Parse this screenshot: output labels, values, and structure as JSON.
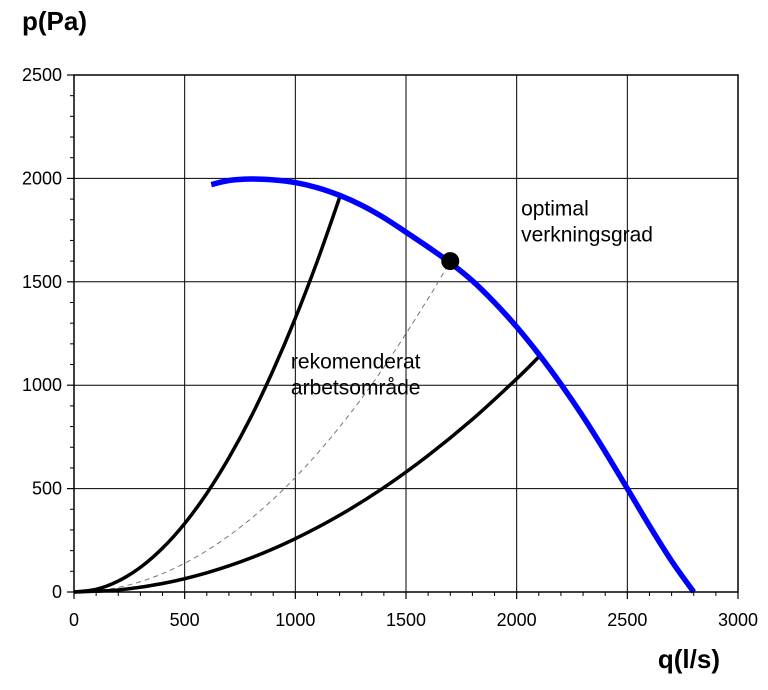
{
  "chart_data": {
    "type": "line",
    "xlabel": "q(l/s)",
    "ylabel": "p(Pa)",
    "xlim": [
      0,
      3000
    ],
    "ylim": [
      0,
      2500
    ],
    "x_ticks": [
      0,
      500,
      1000,
      1500,
      2000,
      2500,
      3000
    ],
    "y_ticks": [
      0,
      500,
      1000,
      1500,
      2000,
      2500
    ],
    "grid": true,
    "colors": {
      "fan_curve": "#0000ff",
      "system_curves": "#000000",
      "optimal_curve": "#777777"
    },
    "series": [
      {
        "role": "fan-curve",
        "style": "blue-thick",
        "x": [
          620,
          700,
          800,
          900,
          1000,
          1100,
          1200,
          1300,
          1400,
          1500,
          1600,
          1700,
          1800,
          1900,
          2000,
          2100,
          2200,
          2300,
          2400,
          2500,
          2600,
          2700,
          2800
        ],
        "y": [
          1970,
          1990,
          1997,
          1993,
          1980,
          1955,
          1918,
          1870,
          1810,
          1740,
          1668,
          1592,
          1505,
          1400,
          1282,
          1150,
          1005,
          848,
          678,
          500,
          320,
          150,
          0
        ]
      },
      {
        "role": "system-curve-upper",
        "style": "black",
        "x": [
          0,
          100,
          200,
          300,
          400,
          500,
          600,
          700,
          800,
          900,
          1000,
          1100,
          1200
        ],
        "y": [
          0,
          13,
          53,
          119,
          212,
          331,
          477,
          649,
          847,
          1073,
          1324,
          1602,
          1907
        ]
      },
      {
        "role": "system-curve-lower",
        "style": "black",
        "x": [
          0,
          200,
          400,
          600,
          800,
          1000,
          1200,
          1400,
          1600,
          1800,
          2000,
          2100
        ],
        "y": [
          0,
          10,
          41,
          93,
          165,
          258,
          371,
          505,
          660,
          835,
          1031,
          1137
        ]
      },
      {
        "role": "optimal-efficiency-curve",
        "style": "gray-dashed",
        "x": [
          0,
          200,
          400,
          600,
          800,
          1000,
          1200,
          1400,
          1600,
          1700
        ],
        "y": [
          0,
          22,
          89,
          200,
          355,
          554,
          798,
          1087,
          1419,
          1600
        ]
      }
    ],
    "points": [
      {
        "role": "optimal-point",
        "x": 1700,
        "y": 1600
      }
    ],
    "annotations": [
      {
        "role": "optimal-label",
        "lines": [
          "optimal",
          "verkningsgrad"
        ],
        "x": 2020,
        "y": 1820
      },
      {
        "role": "range-label",
        "lines": [
          "rekomenderat",
          "arbetsområde"
        ],
        "x": 980,
        "y": 1080
      }
    ]
  }
}
